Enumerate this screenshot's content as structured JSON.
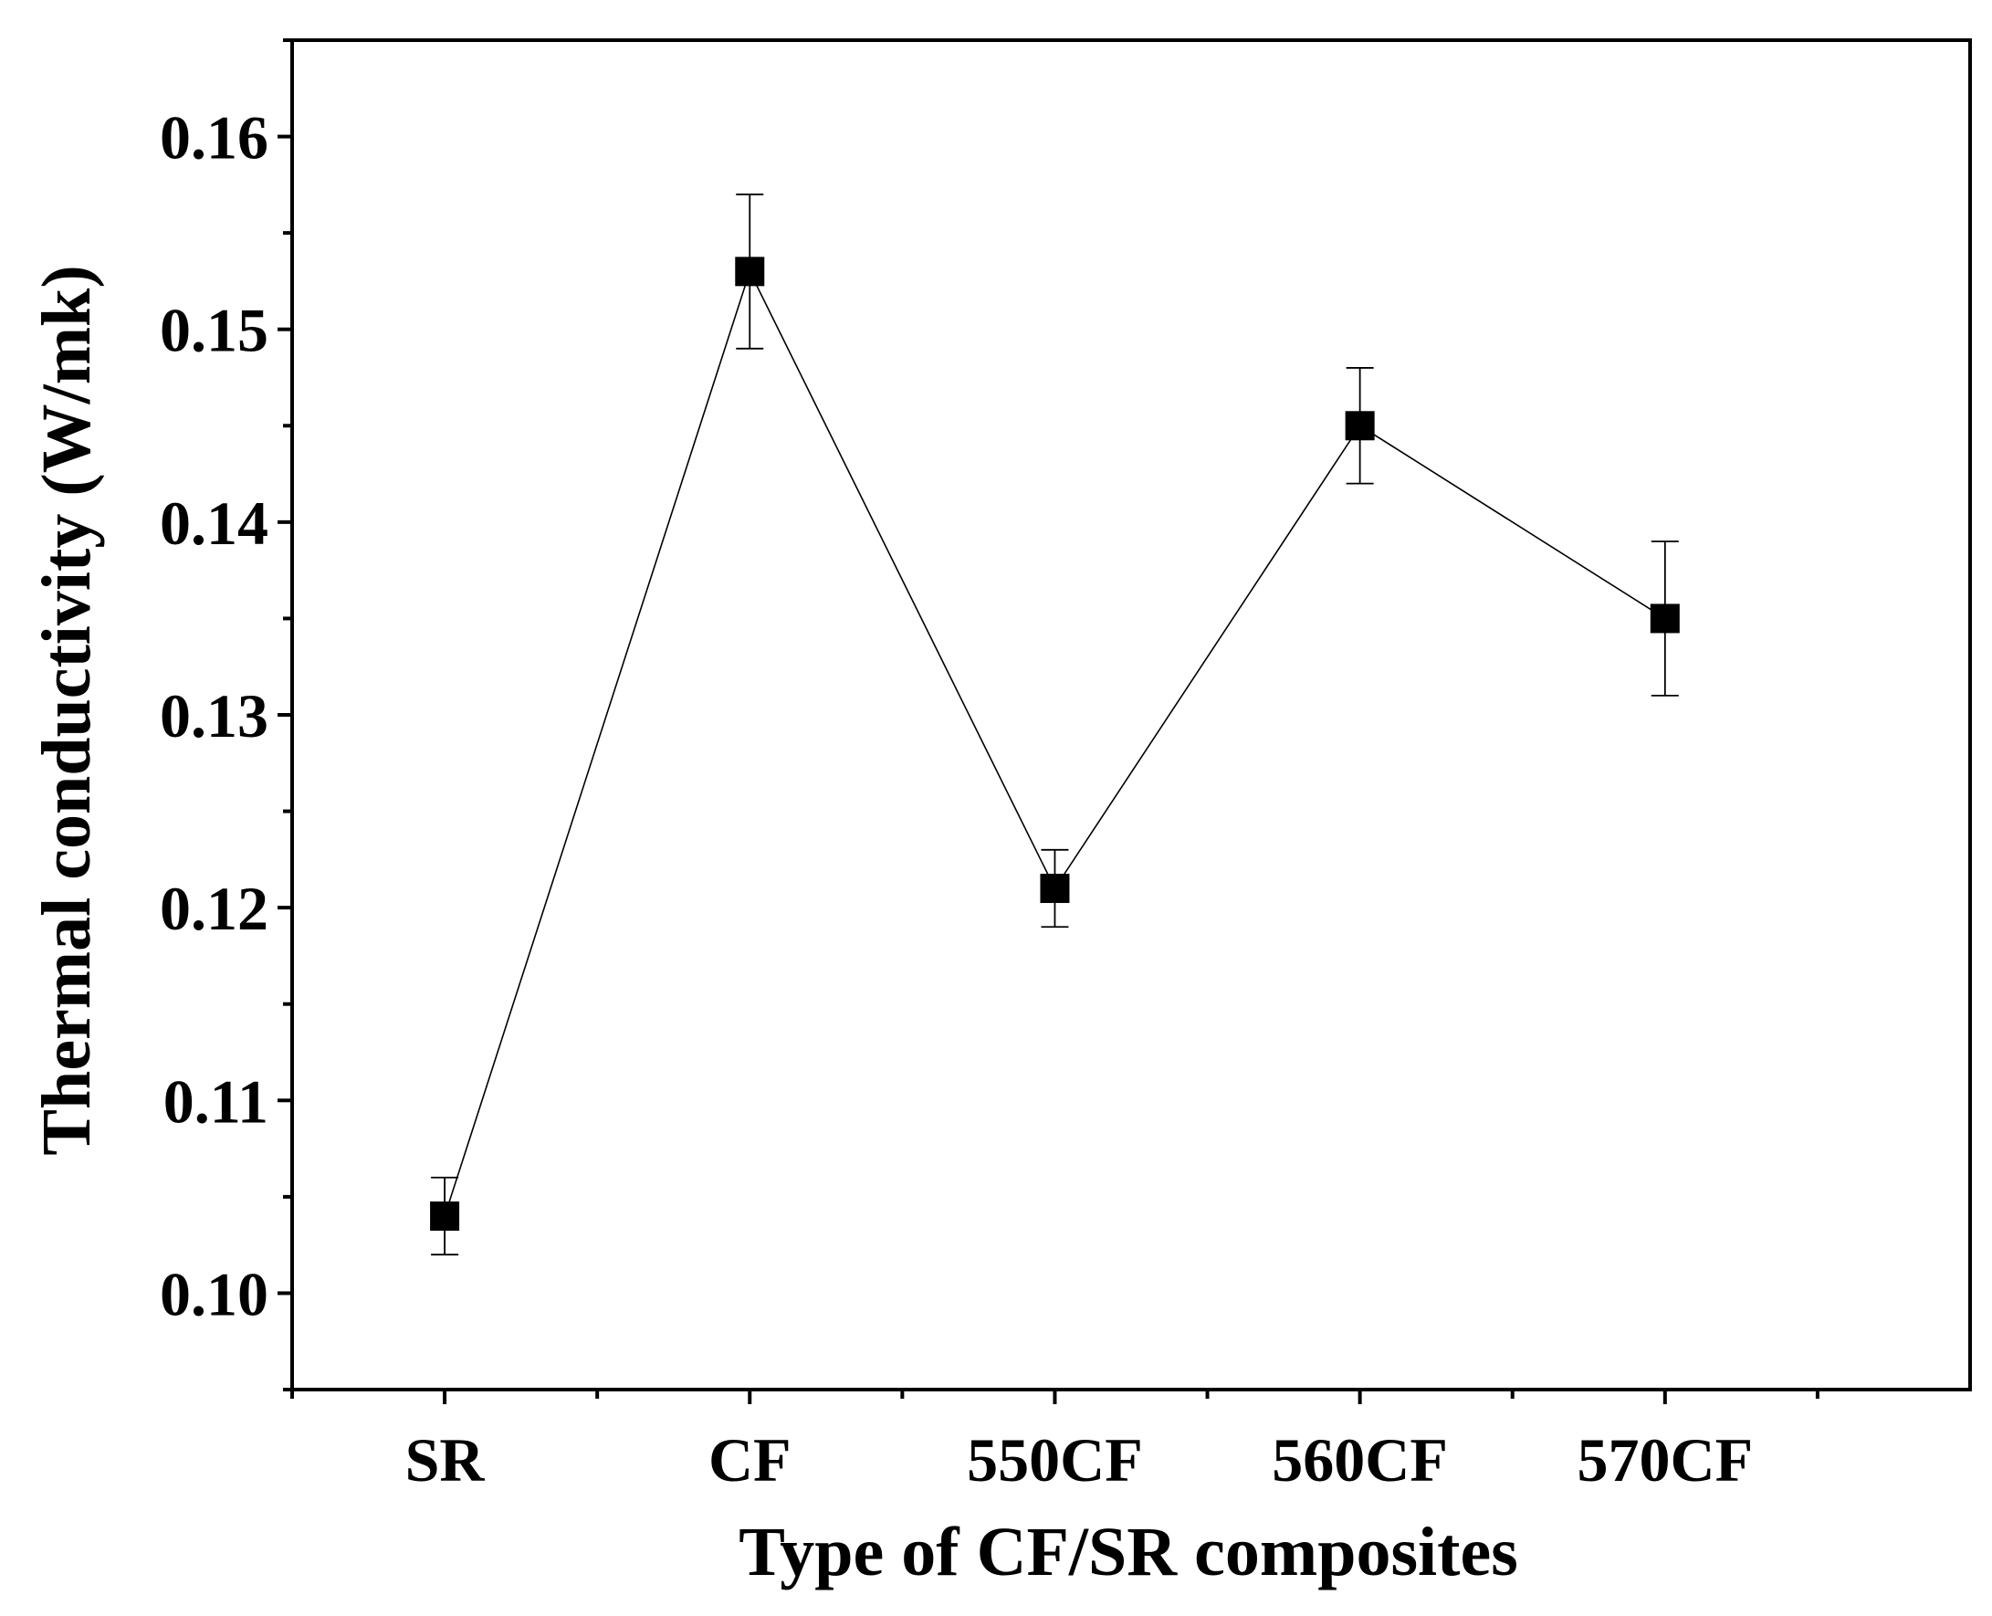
{
  "chart_data": {
    "type": "line",
    "title": "",
    "xlabel": "Type of CF/SR composites",
    "ylabel": "Thermal conductivity (W/mk)",
    "categories": [
      "SR",
      "CF",
      "550CF",
      "560CF",
      "570CF"
    ],
    "series": [
      {
        "name": "Thermal conductivity",
        "values": [
          0.104,
          0.153,
          0.121,
          0.145,
          0.135
        ],
        "error_lower": [
          0.102,
          0.149,
          0.119,
          0.142,
          0.131
        ],
        "error_upper": [
          0.106,
          0.157,
          0.123,
          0.148,
          0.139
        ],
        "marker": "square",
        "color": "#000000"
      }
    ],
    "ylim": [
      0.095,
      0.165
    ],
    "yticks": [
      0.1,
      0.11,
      0.12,
      0.13,
      0.14,
      0.15,
      0.16
    ],
    "ytick_labels": [
      "0.10",
      "0.11",
      "0.12",
      "0.13",
      "0.14",
      "0.15",
      "0.16"
    ],
    "grid": false,
    "legend": "none"
  }
}
